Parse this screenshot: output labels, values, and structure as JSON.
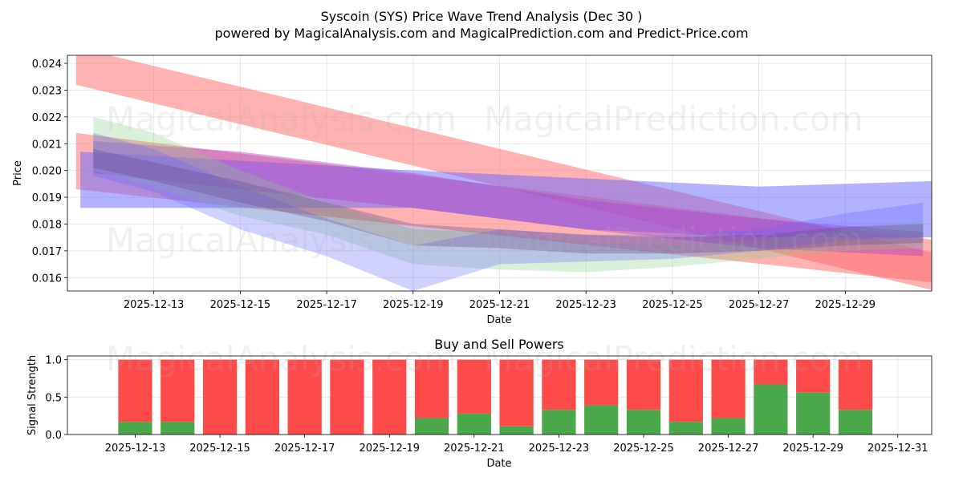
{
  "title": "Syscoin (SYS) Price Wave Trend Analysis (Dec 30 )",
  "subtitle": "powered by MagicalAnalysis.com and MagicalPrediction.com and Predict-Price.com",
  "watermarks": [
    "MagicalAnalysis.com",
    "MagicalPrediction.com"
  ],
  "colors": {
    "buy": "#4aa84a",
    "sell": "#ff4a4a",
    "red_band": "#ff6666",
    "blue_band": "#6666ff",
    "green_band": "#88cc88",
    "purple_band": "#aa44cc"
  },
  "chart_data": [
    {
      "type": "line",
      "title": "",
      "xlabel": "Date",
      "ylabel": "Price",
      "xlim": [
        "2025-12-11",
        "2025-12-31"
      ],
      "ylim": [
        0.0155,
        0.0243
      ],
      "x_ticks": [
        "2025-12-13",
        "2025-12-15",
        "2025-12-17",
        "2025-12-19",
        "2025-12-21",
        "2025-12-23",
        "2025-12-25",
        "2025-12-27",
        "2025-12-29"
      ],
      "y_ticks": [
        "0.016",
        "0.017",
        "0.018",
        "0.019",
        "0.020",
        "0.021",
        "0.022",
        "0.023",
        "0.024"
      ],
      "grid": true,
      "series": [
        {
          "name": "red-trend-upper",
          "color": "#ff6666",
          "x": [
            "2025-12-11.2",
            "2025-12-31.1"
          ],
          "low": [
            0.0232,
            0.0155
          ],
          "high": [
            0.0246,
            0.0169
          ]
        },
        {
          "name": "red-trend-lower",
          "color": "#ff6666",
          "x": [
            "2025-12-11.2",
            "2025-12-31.1"
          ],
          "low": [
            0.0193,
            0.0158
          ],
          "high": [
            0.0214,
            0.0174
          ]
        },
        {
          "name": "blue-trend",
          "color": "#6666ff",
          "x": [
            "2025-12-11.3",
            "2025-12-19",
            "2025-12-23",
            "2025-12-27",
            "2025-12-31"
          ],
          "low": [
            0.0186,
            0.0186,
            0.0178,
            0.0175,
            0.0175
          ],
          "high": [
            0.0207,
            0.02,
            0.0197,
            0.0194,
            0.0196
          ]
        },
        {
          "name": "purple-trend",
          "color": "#aa44cc",
          "x": [
            "2025-12-11.6",
            "2025-12-15",
            "2025-12-19",
            "2025-12-23",
            "2025-12-27",
            "2025-12-30.8"
          ],
          "low": [
            0.0199,
            0.0193,
            0.0186,
            0.0178,
            0.0171,
            0.0168
          ],
          "high": [
            0.0211,
            0.0207,
            0.0199,
            0.0189,
            0.0182,
            0.0177
          ]
        },
        {
          "name": "green-wave",
          "color": "#88cc88",
          "x": [
            "2025-12-11.6",
            "2025-12-13",
            "2025-12-15",
            "2025-12-17",
            "2025-12-19",
            "2025-12-21",
            "2025-12-23",
            "2025-12-25",
            "2025-12-27",
            "2025-12-29",
            "2025-12-30.8"
          ],
          "low": [
            0.02,
            0.0194,
            0.0183,
            0.0176,
            0.0165,
            0.0163,
            0.0162,
            0.0164,
            0.0167,
            0.017,
            0.0171
          ],
          "high": [
            0.022,
            0.0214,
            0.02,
            0.0188,
            0.0178,
            0.0177,
            0.0173,
            0.0172,
            0.0174,
            0.0178,
            0.0181
          ]
        },
        {
          "name": "blue-wave",
          "color": "#6666ff",
          "x": [
            "2025-12-11.6",
            "2025-12-13",
            "2025-12-15",
            "2025-12-17",
            "2025-12-19",
            "2025-12-21",
            "2025-12-23",
            "2025-12-25",
            "2025-12-27",
            "2025-12-29",
            "2025-12-30.8"
          ],
          "low": [
            0.0198,
            0.0192,
            0.0178,
            0.0168,
            0.0155,
            0.0165,
            0.0166,
            0.0167,
            0.017,
            0.0174,
            0.0175
          ],
          "high": [
            0.0214,
            0.0208,
            0.0194,
            0.0182,
            0.0172,
            0.0178,
            0.0176,
            0.0176,
            0.0178,
            0.0184,
            0.0188
          ]
        },
        {
          "name": "dark-core",
          "color": "#6a4a8a",
          "x": [
            "2025-12-11.6",
            "2025-12-13",
            "2025-12-15",
            "2025-12-17",
            "2025-12-19",
            "2025-12-21",
            "2025-12-23",
            "2025-12-25",
            "2025-12-27",
            "2025-12-29",
            "2025-12-30.8"
          ],
          "low": [
            0.0201,
            0.0196,
            0.0188,
            0.0181,
            0.0172,
            0.0171,
            0.0169,
            0.0169,
            0.017,
            0.0172,
            0.0173
          ],
          "high": [
            0.0208,
            0.0203,
            0.0196,
            0.0188,
            0.018,
            0.0178,
            0.0176,
            0.0175,
            0.0176,
            0.0179,
            0.018
          ]
        }
      ]
    },
    {
      "type": "bar",
      "title": "Buy and Sell Powers",
      "xlabel": "Date",
      "ylabel": "Signal Strength",
      "xlim": [
        "2025-12-11.4",
        "2025-12-31.8"
      ],
      "ylim": [
        0,
        1.05
      ],
      "x_ticks": [
        "2025-12-13",
        "2025-12-15",
        "2025-12-17",
        "2025-12-19",
        "2025-12-21",
        "2025-12-23",
        "2025-12-25",
        "2025-12-27",
        "2025-12-29",
        "2025-12-31"
      ],
      "y_ticks": [
        "0.0",
        "0.5",
        "1.0"
      ],
      "grid": true,
      "categories": [
        "2025-12-13",
        "2025-12-14",
        "2025-12-15",
        "2025-12-16",
        "2025-12-17",
        "2025-12-18",
        "2025-12-19",
        "2025-12-20",
        "2025-12-21",
        "2025-12-22",
        "2025-12-23",
        "2025-12-24",
        "2025-12-25",
        "2025-12-26",
        "2025-12-27",
        "2025-12-28",
        "2025-12-29",
        "2025-12-30"
      ],
      "series": [
        {
          "name": "Buy",
          "color": "#4aa84a",
          "values": [
            0.17,
            0.17,
            0.0,
            0.0,
            0.0,
            0.0,
            0.0,
            0.22,
            0.28,
            0.11,
            0.33,
            0.39,
            0.33,
            0.17,
            0.22,
            0.67,
            0.56,
            0.33
          ]
        },
        {
          "name": "Sell",
          "color": "#ff4a4a",
          "values": [
            0.83,
            0.83,
            1.0,
            1.0,
            1.0,
            1.0,
            1.0,
            0.78,
            0.72,
            0.89,
            0.67,
            0.61,
            0.67,
            0.83,
            0.78,
            0.33,
            0.44,
            0.67
          ]
        }
      ]
    }
  ]
}
